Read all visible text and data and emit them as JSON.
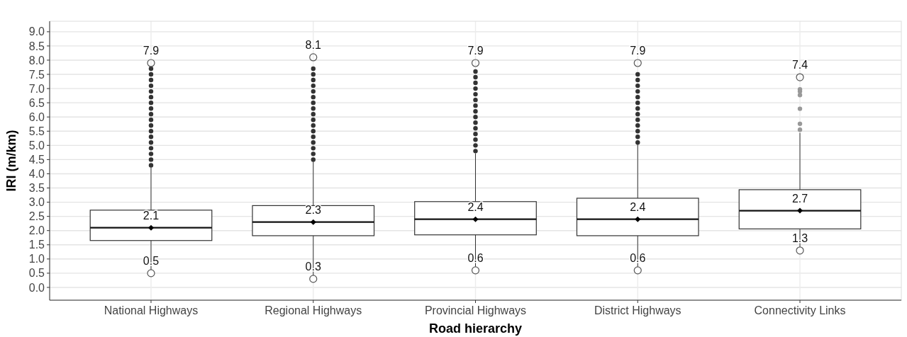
{
  "chart_data": {
    "type": "box",
    "xlabel": "Road hierarchy",
    "ylabel": "IRI (m/km)",
    "categories": [
      "National Highways",
      "Regional Highways",
      "Provincial Highways",
      "District Highways",
      "Connectivity Links"
    ],
    "boxes": [
      {
        "low": 0.5,
        "q1": 1.65,
        "median": 2.1,
        "q3": 2.72,
        "high": 4.3,
        "mean": 2.1,
        "outliers": [
          4.3,
          4.5,
          4.7,
          4.9,
          5.1,
          5.3,
          5.5,
          5.7,
          5.9,
          6.1,
          6.3,
          6.5,
          6.7,
          6.9,
          7.1,
          7.3,
          7.5,
          7.7
        ]
      },
      {
        "low": 0.3,
        "q1": 1.82,
        "median": 2.3,
        "q3": 2.88,
        "high": 4.45,
        "mean": 2.3,
        "outliers": [
          4.5,
          4.7,
          4.9,
          5.1,
          5.3,
          5.5,
          5.7,
          5.9,
          6.1,
          6.3,
          6.5,
          6.7,
          6.9,
          7.1,
          7.3,
          7.5,
          7.7
        ]
      },
      {
        "low": 0.6,
        "q1": 1.85,
        "median": 2.4,
        "q3": 3.02,
        "high": 4.72,
        "mean": 2.4,
        "outliers": [
          4.8,
          5.0,
          5.2,
          5.4,
          5.6,
          5.8,
          6.0,
          6.2,
          6.4,
          6.6,
          6.8,
          7.0,
          7.2,
          7.4,
          7.6
        ]
      },
      {
        "low": 0.6,
        "q1": 1.82,
        "median": 2.4,
        "q3": 3.14,
        "high": 5.05,
        "mean": 2.4,
        "outliers": [
          5.1,
          5.3,
          5.5,
          5.7,
          5.9,
          6.1,
          6.3,
          6.5,
          6.7,
          6.9,
          7.1,
          7.3,
          7.5
        ]
      },
      {
        "low": 1.3,
        "q1": 2.06,
        "median": 2.7,
        "q3": 3.44,
        "high": 5.44,
        "mean": 2.7,
        "outliers": [
          5.55,
          5.76,
          6.29,
          6.77,
          6.9,
          6.97
        ]
      }
    ],
    "series": [
      {
        "type": "scatter",
        "color": "#555555",
        "x": [
          "National Highways",
          "Regional Highways",
          "Provincial Highways",
          "District Highways",
          "Connectivity Links"
        ],
        "values": [
          7.9,
          8.1,
          7.9,
          7.9,
          7.4
        ]
      }
    ],
    "marker": "circle",
    "annotations": [
      {
        "text": "7.9",
        "x": "National Highways",
        "y": 7.9
      },
      {
        "text": "8.1",
        "x": "Regional Highways",
        "y": 8.1
      },
      {
        "text": "7.9",
        "x": "Provincial Highways",
        "y": 7.9
      },
      {
        "text": "7.9",
        "x": "District Highways",
        "y": 7.9
      },
      {
        "text": "7.4",
        "x": "Connectivity Links",
        "y": 7.4
      },
      {
        "text": "2.1",
        "x": "National Highways",
        "y": 2.1
      },
      {
        "text": "2.3",
        "x": "Regional Highways",
        "y": 2.3
      },
      {
        "text": "2.4",
        "x": "Provincial Highways",
        "y": 2.4
      },
      {
        "text": "2.4",
        "x": "District Highways",
        "y": 2.4
      },
      {
        "text": "2.7",
        "x": "Connectivity Links",
        "y": 2.7
      },
      {
        "text": "0.5",
        "x": "National Highways",
        "y": 0.5
      },
      {
        "text": "0.3",
        "x": "Regional Highways",
        "y": 0.3
      },
      {
        "text": "0.6",
        "x": "Provincial Highways",
        "y": 0.6
      },
      {
        "text": "0.6",
        "x": "District Highways",
        "y": 0.6
      },
      {
        "text": "1.3",
        "x": "Connectivity Links",
        "y": 1.3
      }
    ],
    "ylim": [
      -0.45,
      9.37
    ],
    "yticks": [
      {
        "value": 0,
        "label": "0.0"
      },
      0.5,
      {
        "value": 1,
        "label": "1.0"
      },
      1.5,
      {
        "value": 2,
        "label": "2.0"
      },
      2.5,
      {
        "value": 3,
        "label": "3.0"
      },
      3.5,
      {
        "value": 4,
        "label": "4.0"
      },
      4.5,
      {
        "value": 5,
        "label": "5.0"
      },
      5.5,
      {
        "value": 6,
        "label": "6.0"
      },
      6.5,
      {
        "value": 7,
        "label": "7.0"
      },
      7.5,
      {
        "value": 8,
        "label": "8.0"
      },
      8.5,
      {
        "value": 9,
        "label": "9.0"
      }
    ],
    "grid": true
  }
}
